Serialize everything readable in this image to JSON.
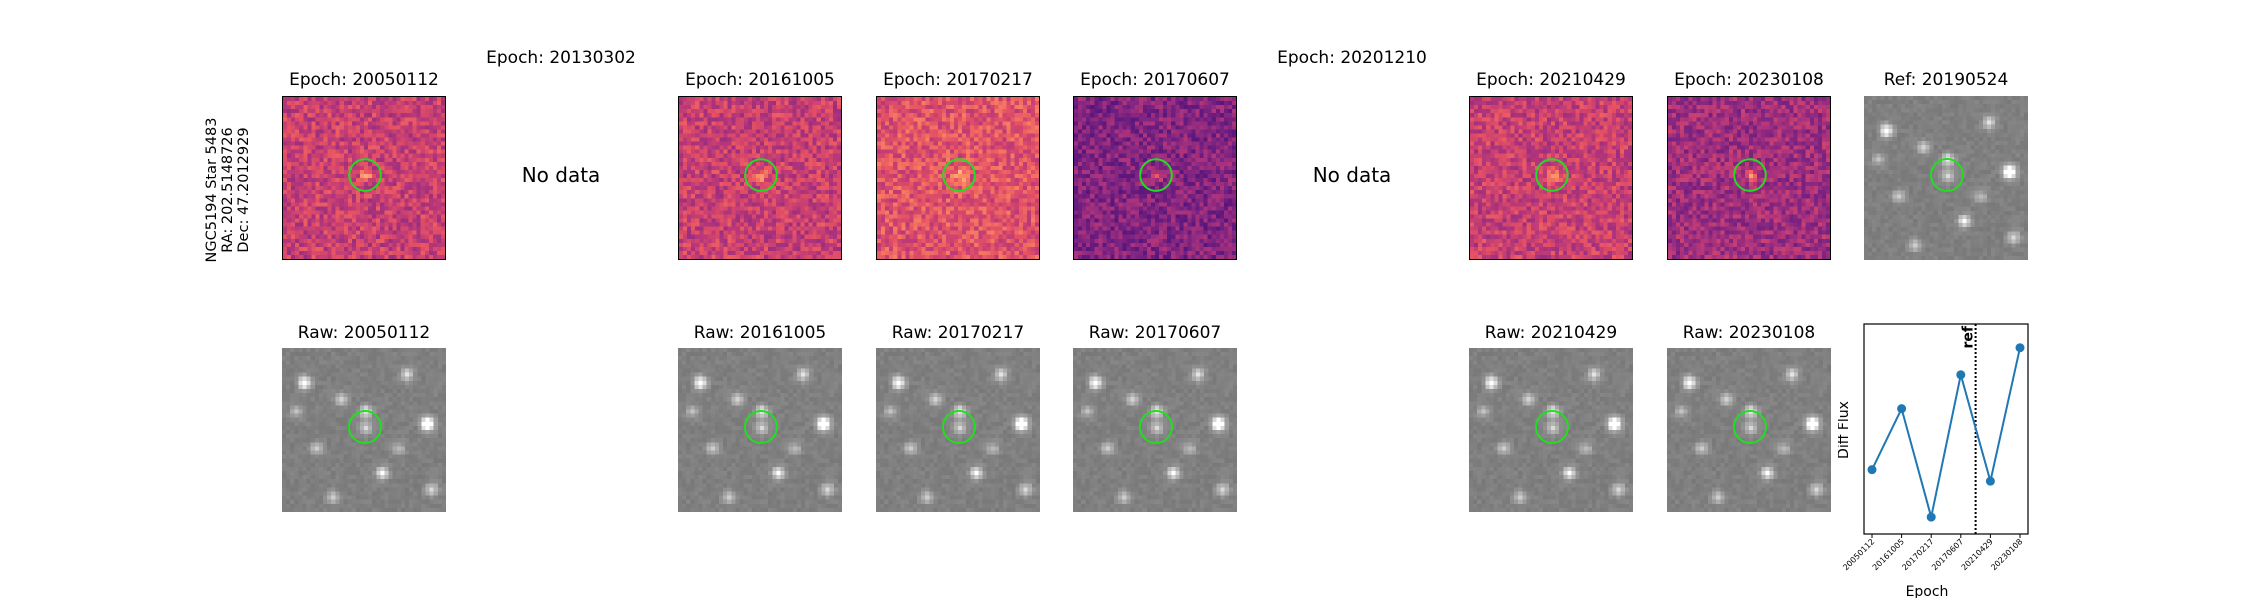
{
  "object_label": {
    "line1": "NGC5194 Star 5483",
    "line2": "RA: 202.5148726",
    "line3": "Dec: 47.2012929"
  },
  "diff_row": [
    {
      "title": "Epoch: 20050112",
      "has_data": true
    },
    {
      "title": "Epoch: 20130302",
      "has_data": false,
      "message": "No data"
    },
    {
      "title": "Epoch: 20161005",
      "has_data": true
    },
    {
      "title": "Epoch: 20170217",
      "has_data": true
    },
    {
      "title": "Epoch: 20170607",
      "has_data": true
    },
    {
      "title": "Epoch: 20201210",
      "has_data": false,
      "message": "No data"
    },
    {
      "title": "Epoch: 20210429",
      "has_data": true
    },
    {
      "title": "Epoch: 20230108",
      "has_data": true
    }
  ],
  "reference": {
    "title": "Ref: 20190524"
  },
  "raw_row": [
    {
      "title": "Raw: 20050112"
    },
    {
      "title": "Raw: 20161005"
    },
    {
      "title": "Raw: 20170217"
    },
    {
      "title": "Raw: 20170607"
    },
    {
      "title": "Raw: 20210429"
    },
    {
      "title": "Raw: 20230108"
    }
  ],
  "colors": {
    "diff_colormap": "magma",
    "raw_colormap": "gray",
    "aperture_circle": "#22dd22",
    "series_line": "#1f77b4"
  },
  "chart_data": {
    "type": "line",
    "title": "",
    "xlabel": "Epoch",
    "ylabel": "Diff Flux",
    "categories": [
      "20050112",
      "20161005",
      "20170217",
      "20170607",
      "20210429",
      "20230108"
    ],
    "series": [
      {
        "values": [
          -0.55,
          0.35,
          -1.25,
          0.85,
          -0.72,
          1.25
        ]
      }
    ],
    "ylim": [
      -1.5,
      1.6
    ],
    "reference_line": {
      "between": [
        "20170607",
        "20210429"
      ],
      "label": "ref",
      "style": "dotted"
    },
    "y_tick_labels_shown": false,
    "grid": false,
    "legend": "none"
  }
}
